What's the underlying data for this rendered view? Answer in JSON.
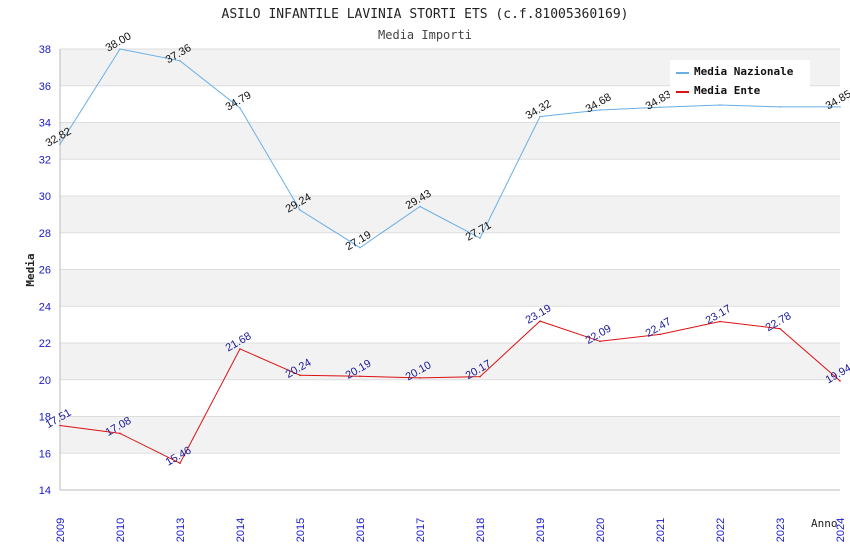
{
  "chart_data": {
    "type": "line",
    "title": "ASILO INFANTILE LAVINIA STORTI ETS (c.f.81005360169)",
    "subtitle": "Media Importi",
    "xlabel": "Anno",
    "ylabel": "Media",
    "ylim": [
      14,
      38
    ],
    "yticks": [
      "14",
      "16",
      "18",
      "20",
      "22",
      "24",
      "26",
      "28",
      "30",
      "32",
      "34",
      "36",
      "38"
    ],
    "x": [
      "2009",
      "2010",
      "2013",
      "2014",
      "2015",
      "2016",
      "2017",
      "2018",
      "2019",
      "2020",
      "2021",
      "2022",
      "2023",
      "2024"
    ],
    "grid": true,
    "legend_position": "top-right",
    "series": [
      {
        "name": "Media Nazionale",
        "color": "#6aaee6",
        "label_color": "#111111",
        "values": [
          32.82,
          38.0,
          37.36,
          34.79,
          29.24,
          27.19,
          29.43,
          27.71,
          34.32,
          34.68,
          34.83,
          34.95,
          34.85,
          34.85
        ],
        "labels": [
          "32.82",
          "38.00",
          "37.36",
          "34.79",
          "29.24",
          "27.19",
          "29.43",
          "27.71",
          "34.32",
          "34.68",
          "34.83",
          "",
          "",
          "34.85"
        ]
      },
      {
        "name": "Media Ente",
        "color": "#dd1111",
        "label_color": "#1a1a99",
        "values": [
          17.51,
          17.08,
          15.46,
          21.68,
          20.24,
          20.19,
          20.1,
          20.17,
          23.19,
          22.09,
          22.47,
          23.17,
          22.78,
          19.94
        ],
        "labels": [
          "17.51",
          "17.08",
          "15.46",
          "21.68",
          "20.24",
          "20.19",
          "20.10",
          "20.17",
          "23.19",
          "22.09",
          "22.47",
          "23.17",
          "22.78",
          "19.94"
        ]
      }
    ]
  }
}
